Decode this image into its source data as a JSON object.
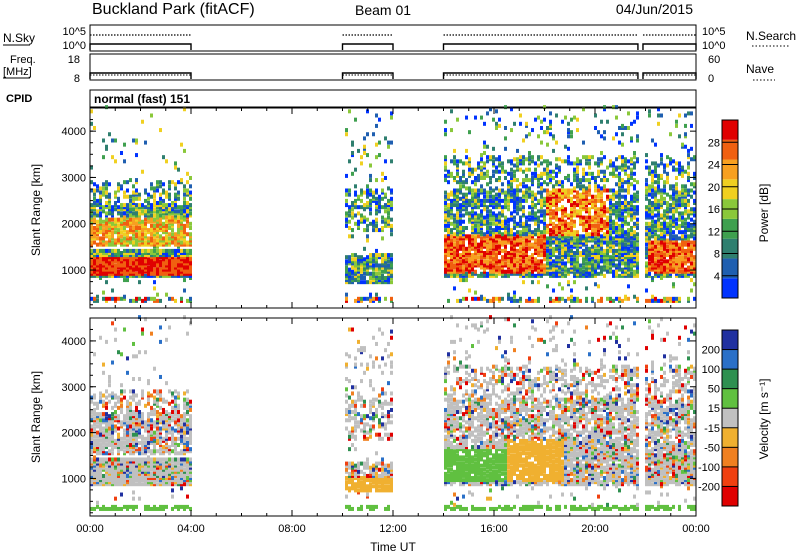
{
  "header": {
    "title": "Buckland Park (fitACF)",
    "beam": "Beam 01",
    "date": "04/Jun/2015"
  },
  "top_panels": {
    "nsky_label": "N.Sky",
    "nsky_ticks": [
      "10^5",
      "10^0"
    ],
    "nsearch_label": "N.Search",
    "nsearch_ticks": [
      "10^5",
      "10^0"
    ],
    "freq_label": "Freq.",
    "freq_unit": "[MHz]",
    "freq_ticks": [
      "18",
      "8"
    ],
    "nave_label": "Nave",
    "nave_ticks": [
      "60",
      "0"
    ],
    "cpid_label": "CPID",
    "cpid_text": "normal (fast) 151"
  },
  "data_blocks": [
    {
      "start_hour": 0.0,
      "end_hour": 4.0
    },
    {
      "start_hour": 10.0,
      "end_hour": 12.0
    },
    {
      "start_hour": 14.0,
      "end_hour": 21.7
    },
    {
      "start_hour": 21.9,
      "end_hour": 24.0
    }
  ],
  "chart_data": [
    {
      "type": "heatmap",
      "name": "power",
      "ylabel": "Slant Range [km]",
      "xlabel": "",
      "ylim": [
        180,
        4500
      ],
      "yticks": [
        "1000",
        "2000",
        "3000",
        "4000"
      ],
      "colorbar_label": "Power [dB]",
      "colorbar_ticks": [
        "4",
        "8",
        "12",
        "16",
        "20",
        "24",
        "28"
      ],
      "colors": [
        "#0033ff",
        "#1f5fb0",
        "#2f7f6f",
        "#3fa04f",
        "#8ac83a",
        "#f0d020",
        "#f7a020",
        "#f06010",
        "#e00000"
      ]
    },
    {
      "type": "heatmap",
      "name": "velocity",
      "ylabel": "Slant Range [km]",
      "xlabel": "Time UT",
      "ylim": [
        180,
        4500
      ],
      "yticks": [
        "1000",
        "2000",
        "3000",
        "4000"
      ],
      "xticks": [
        "00:00",
        "04:00",
        "08:00",
        "12:00",
        "16:00",
        "20:00",
        "00:00"
      ],
      "colorbar_label": "Velocity [m s⁻¹]",
      "colorbar_ticks": [
        "200",
        "100",
        "50",
        "15",
        "-15",
        "-50",
        "-100",
        "-200"
      ],
      "colors": [
        "#2030a0",
        "#2a70c8",
        "#2e9050",
        "#60c040",
        "#c0c0c0",
        "#f0b030",
        "#f08020",
        "#f04010",
        "#e00000"
      ]
    }
  ]
}
